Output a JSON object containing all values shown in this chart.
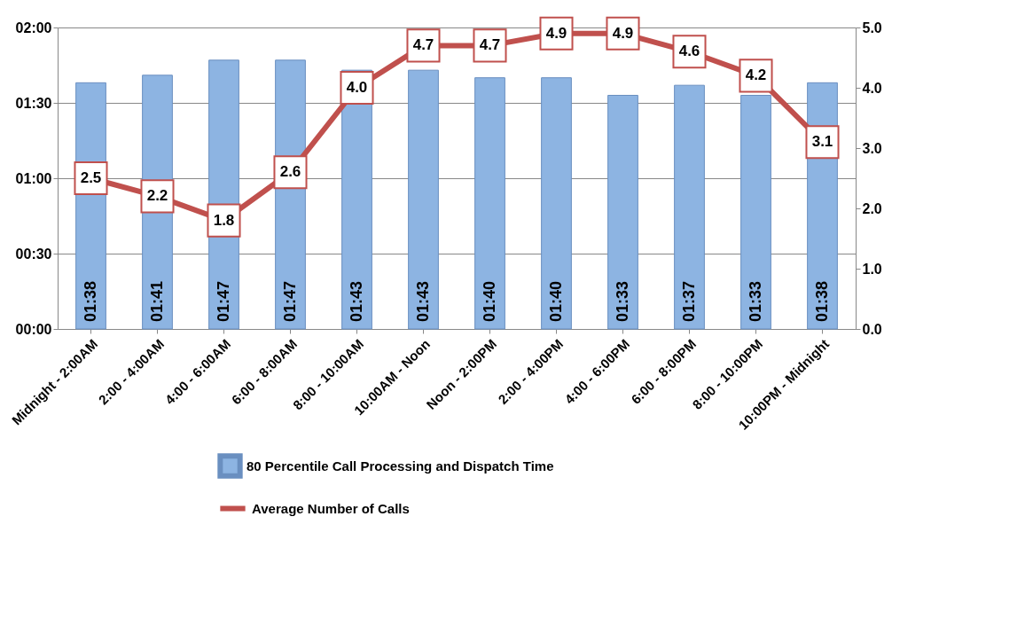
{
  "chart_data": {
    "type": "bar",
    "categories": [
      "Midnight - 2:00AM",
      "2:00 - 4:00AM",
      "4:00 - 6:00AM",
      "6:00 - 8:00AM",
      "8:00 - 10:00AM",
      "10:00AM - Noon",
      "Noon - 2:00PM",
      "2:00 - 4:00PM",
      "4:00 - 6:00PM",
      "6:00 - 8:00PM",
      "8:00 - 10:00PM",
      "10:00PM - Midnight"
    ],
    "series": [
      {
        "name": "80 Percentile Call Processing and Dispatch Time",
        "color": "#8db4e2",
        "values": [
          98,
          101,
          107,
          107,
          103,
          103,
          100,
          100,
          93,
          97,
          93,
          98
        ],
        "value_labels": [
          "01:38",
          "01:41",
          "01:47",
          "01:47",
          "01:43",
          "01:43",
          "01:40",
          "01:40",
          "01:33",
          "01:37",
          "01:33",
          "01:38"
        ]
      },
      {
        "name": "Average Number of Calls",
        "type": "line",
        "axis": "y2",
        "color": "#c0504d",
        "marker": "square",
        "values": [
          2.5,
          2.2,
          1.8,
          2.6,
          4.0,
          4.7,
          4.7,
          4.9,
          4.9,
          4.6,
          4.2,
          3.1
        ],
        "value_labels": [
          "2.5",
          "2.2",
          "1.8",
          "2.6",
          "4.0",
          "4.7",
          "4.7",
          "4.9",
          "4.9",
          "4.6",
          "4.2",
          "3.1"
        ]
      }
    ],
    "ylim": [
      0,
      120
    ],
    "yticks": [
      {
        "value": 0,
        "label": "00:00"
      },
      {
        "value": 30,
        "label": "00:30"
      },
      {
        "value": 60,
        "label": "01:00"
      },
      {
        "value": 90,
        "label": "01:30"
      },
      {
        "value": 120,
        "label": "02:00"
      }
    ],
    "y2lim": [
      0,
      5
    ],
    "y2ticks": [
      {
        "value": 0,
        "label": "0.0"
      },
      {
        "value": 1,
        "label": "1.0"
      },
      {
        "value": 2,
        "label": "2.0"
      },
      {
        "value": 3,
        "label": "3.0"
      },
      {
        "value": 4,
        "label": "4.0"
      },
      {
        "value": 5,
        "label": "5.0"
      }
    ],
    "grid": "y",
    "legend": "bottom"
  }
}
